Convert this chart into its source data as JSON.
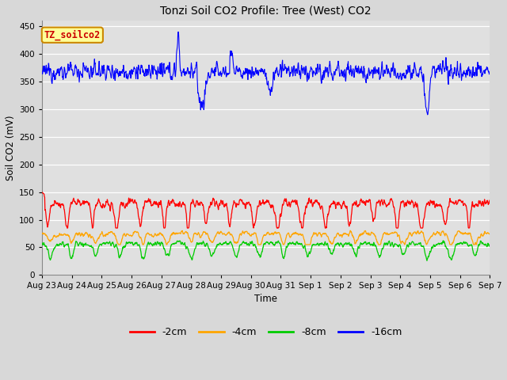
{
  "title": "Tonzi Soil CO2 Profile: Tree (West) CO2",
  "xlabel": "Time",
  "ylabel": "Soil CO2 (mV)",
  "ylim": [
    0,
    460
  ],
  "yticks": [
    0,
    50,
    100,
    150,
    200,
    250,
    300,
    350,
    400,
    450
  ],
  "fig_bg_color": "#d8d8d8",
  "plot_bg_color": "#e0e0e0",
  "legend_labels": [
    "-2cm",
    "-4cm",
    "-8cm",
    "-16cm"
  ],
  "legend_colors": [
    "#ff0000",
    "#ffa500",
    "#00cc00",
    "#0000ff"
  ],
  "xticklabels": [
    "Aug 23",
    "Aug 24",
    "Aug 25",
    "Aug 26",
    "Aug 27",
    "Aug 28",
    "Aug 29",
    "Aug 30",
    "Aug 31",
    "Sep 1",
    "Sep 2",
    "Sep 3",
    "Sep 4",
    "Sep 5",
    "Sep 6",
    "Sep 7"
  ],
  "annotation_text": "TZ_soilco2",
  "annotation_bg": "#ffff99",
  "annotation_border": "#cc8800"
}
